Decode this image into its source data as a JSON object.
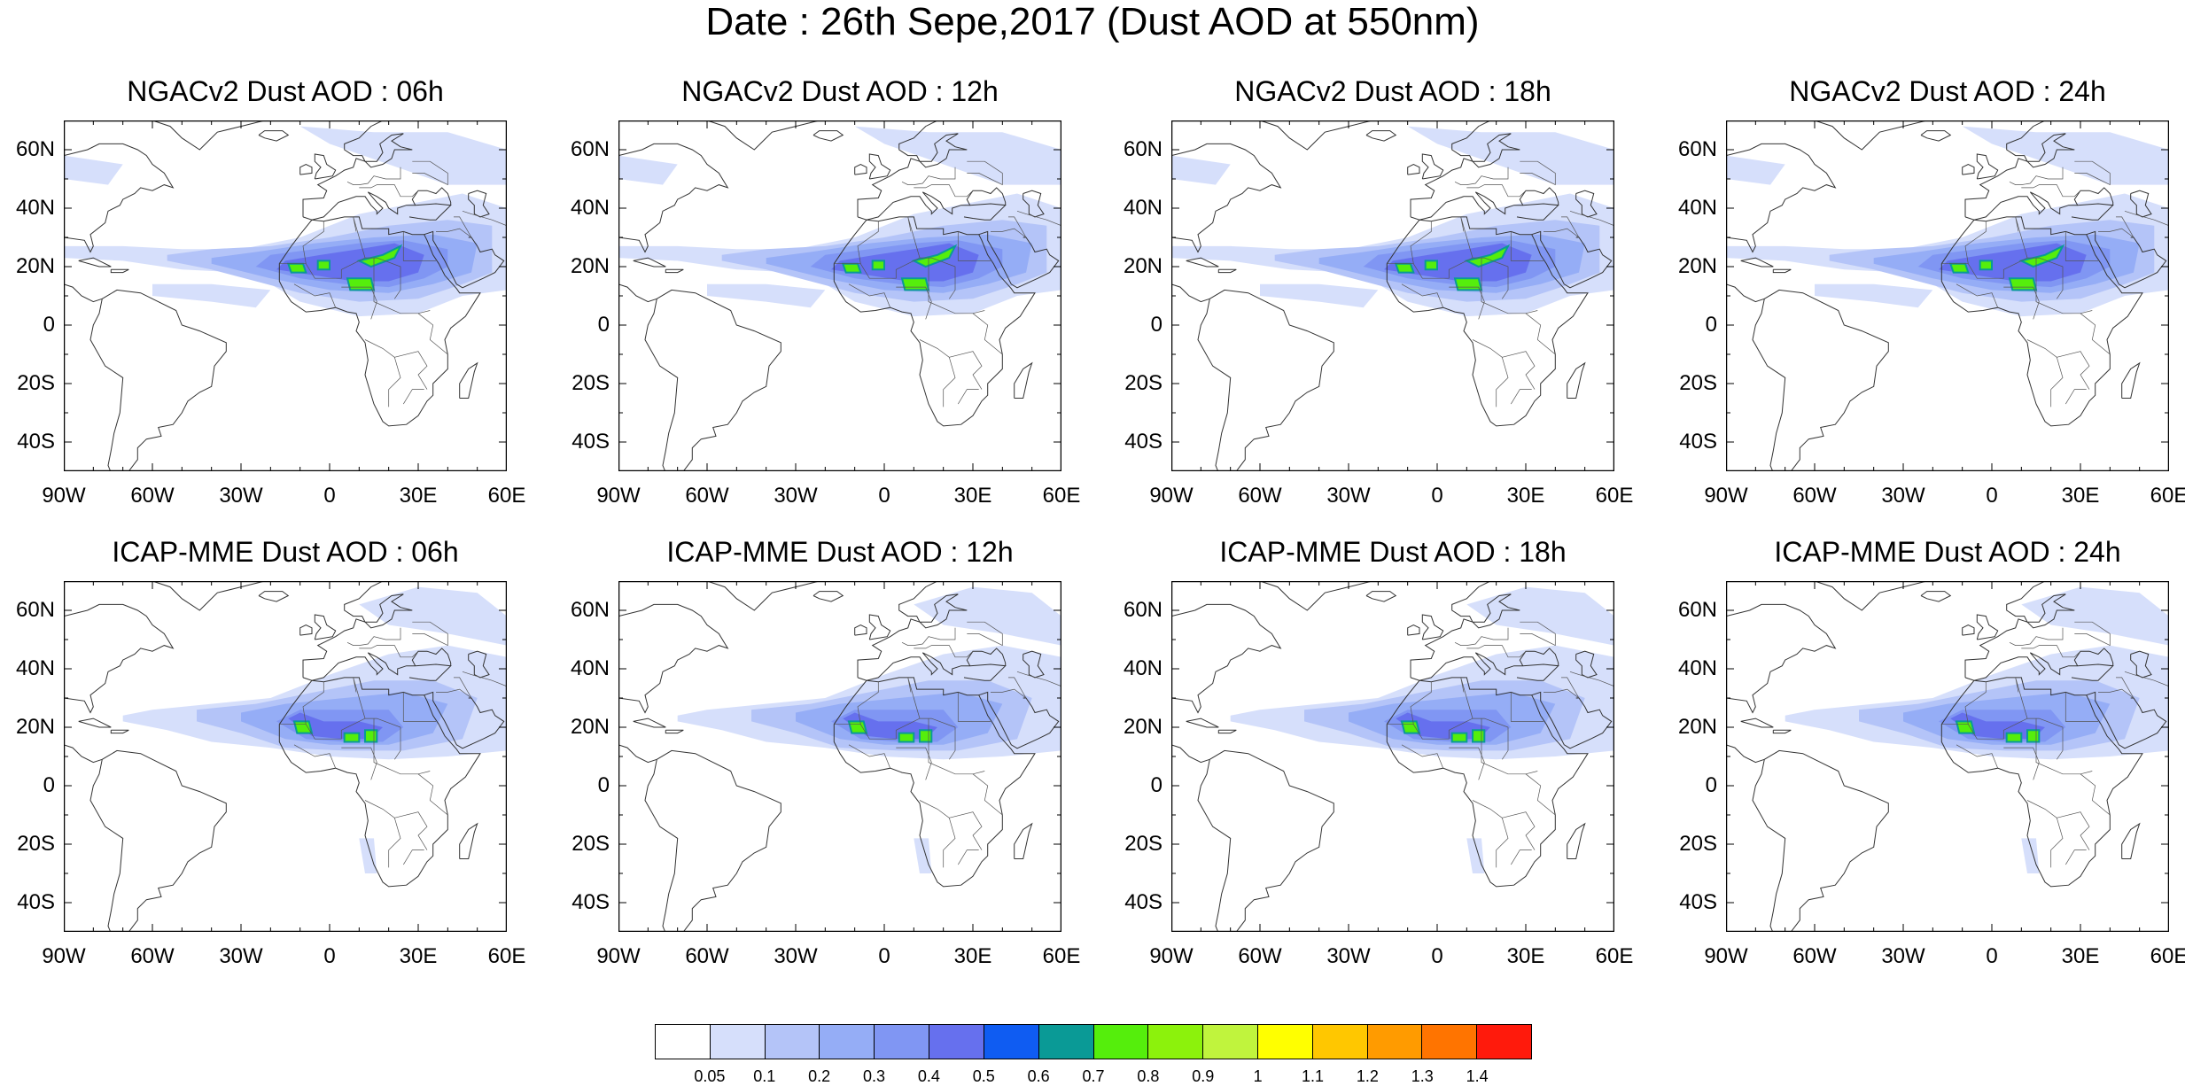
{
  "figure": {
    "title": "Date : 26th Sepe,2017 (Dust AOD at 550nm)"
  },
  "panels": [
    {
      "title": "NGACv2 Dust AOD : 06h"
    },
    {
      "title": "NGACv2 Dust AOD : 12h"
    },
    {
      "title": "NGACv2 Dust AOD : 18h"
    },
    {
      "title": "NGACv2 Dust AOD : 24h"
    },
    {
      "title": "ICAP-MME Dust AOD : 06h"
    },
    {
      "title": "ICAP-MME Dust AOD : 12h"
    },
    {
      "title": "ICAP-MME Dust AOD : 18h"
    },
    {
      "title": "ICAP-MME Dust AOD : 24h"
    }
  ],
  "axes": {
    "lat_labels": [
      "60N",
      "40N",
      "20N",
      "0",
      "20S",
      "40S"
    ],
    "lat_values": [
      60,
      40,
      20,
      0,
      -20,
      -40
    ],
    "lon_labels": [
      "90W",
      "60W",
      "30W",
      "0",
      "30E",
      "60E"
    ],
    "lon_values": [
      -90,
      -60,
      -30,
      0,
      30,
      60
    ],
    "lat_range": [
      -50,
      70
    ],
    "lon_range": [
      -90,
      60
    ]
  },
  "colorbar": {
    "colors": [
      "#ffffff",
      "#d6dffb",
      "#b4c4f8",
      "#95adf6",
      "#8096f3",
      "#6670ee",
      "#0f5cf2",
      "#0a9a96",
      "#55ee0c",
      "#8cf20c",
      "#c0f43d",
      "#ffff00",
      "#ffc700",
      "#ff9b00",
      "#ff7400",
      "#ff1a0c"
    ],
    "tick_labels": [
      "0.05",
      "0.1",
      "0.2",
      "0.3",
      "0.4",
      "0.5",
      "0.6",
      "0.7",
      "0.8",
      "0.9",
      "1",
      "1.1",
      "1.2",
      "1.3",
      "1.4"
    ]
  }
}
